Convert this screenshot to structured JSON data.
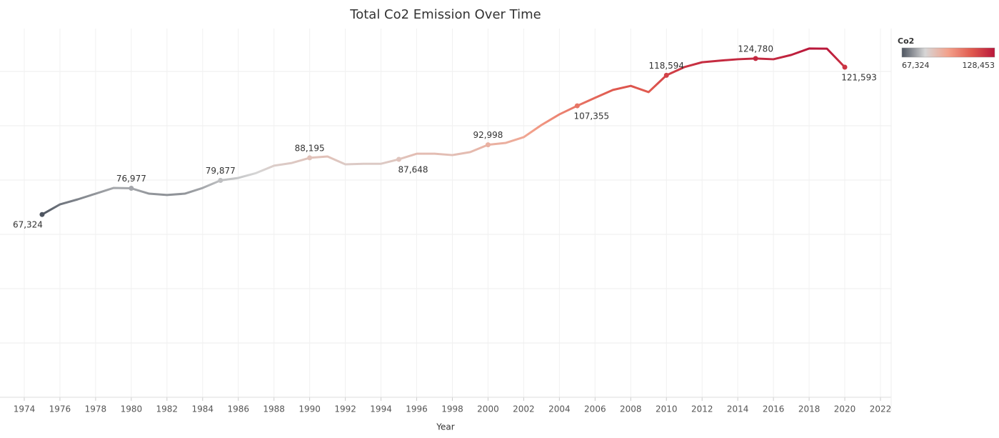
{
  "chart_data": {
    "type": "line",
    "title": "Total Co2  Emission Over Time",
    "x_label": "Year",
    "x": [
      1975,
      1976,
      1977,
      1978,
      1979,
      1980,
      1981,
      1982,
      1983,
      1984,
      1985,
      1986,
      1987,
      1988,
      1989,
      1990,
      1991,
      1992,
      1993,
      1994,
      1995,
      1996,
      1997,
      1998,
      1999,
      2000,
      2001,
      2002,
      2003,
      2004,
      2005,
      2006,
      2007,
      2008,
      2009,
      2010,
      2011,
      2012,
      2013,
      2014,
      2015,
      2016,
      2017,
      2018,
      2019,
      2020
    ],
    "series": [
      {
        "name": "Co2",
        "values": [
          67324,
          71050,
          72900,
          75000,
          77100,
          76977,
          75000,
          74500,
          75000,
          77100,
          79877,
          80800,
          82600,
          85300,
          86300,
          88195,
          88700,
          85800,
          86000,
          86000,
          87648,
          89700,
          89700,
          89200,
          90300,
          92998,
          93700,
          95800,
          100300,
          104200,
          107355,
          110300,
          113200,
          114700,
          112400,
          118594,
          121600,
          123400,
          124000,
          124500,
          124780,
          124500,
          126100,
          128453,
          128400,
          121593
        ],
        "value_labels": [
          "67,324",
          null,
          null,
          null,
          null,
          "76,977",
          null,
          null,
          null,
          null,
          "79,877",
          null,
          null,
          null,
          null,
          "88,195",
          null,
          null,
          null,
          null,
          "87,648",
          null,
          null,
          null,
          null,
          "92,998",
          null,
          null,
          null,
          null,
          "107,355",
          null,
          null,
          null,
          null,
          "118,594",
          null,
          null,
          null,
          null,
          "124,780",
          null,
          null,
          null,
          null,
          "121,593"
        ]
      }
    ],
    "xlim": [
      1972.64,
      2022.6
    ],
    "xticks": [
      1974,
      1976,
      1978,
      1980,
      1982,
      1984,
      1986,
      1988,
      1990,
      1992,
      1994,
      1996,
      1998,
      2000,
      2002,
      2004,
      2006,
      2008,
      2010,
      2012,
      2014,
      2016,
      2018,
      2020,
      2022
    ],
    "ylim": [
      0,
      135800
    ],
    "ygrid": [
      0,
      20000,
      40000,
      60000,
      80000,
      100000,
      120000
    ],
    "grid": true,
    "color_scale": {
      "title": "Co2",
      "min": {
        "value": 67324,
        "label": "67,324"
      },
      "max": {
        "value": 128453,
        "label": "128,453"
      },
      "colors": [
        "#4e5560",
        "#d6d6d6",
        "#f3a08a",
        "#e05a4f",
        "#b9173a"
      ]
    }
  }
}
